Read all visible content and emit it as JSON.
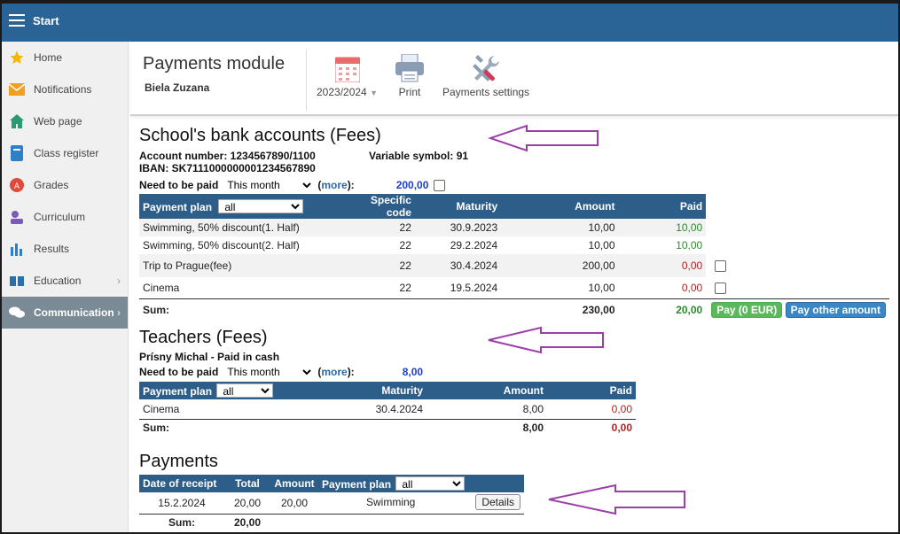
{
  "topbar": {
    "title": "Start"
  },
  "sidebar": {
    "items": [
      {
        "label": "Home",
        "icon": "star-icon"
      },
      {
        "label": "Notifications",
        "icon": "envelope-icon"
      },
      {
        "label": "Web page",
        "icon": "house-icon"
      },
      {
        "label": "Class register",
        "icon": "book-icon"
      },
      {
        "label": "Grades",
        "icon": "grades-icon"
      },
      {
        "label": "Curriculum",
        "icon": "curriculum-icon"
      },
      {
        "label": "Results",
        "icon": "bar-chart-icon"
      },
      {
        "label": "Education",
        "icon": "open-book-icon"
      },
      {
        "label": "Communication",
        "icon": "chat-icon"
      }
    ]
  },
  "toolbar": {
    "title": "Payments module",
    "user": "Biela Zuzana",
    "year": "2023/2024",
    "print": "Print",
    "settings": "Payments settings"
  },
  "bank": {
    "title": "School's bank accounts (Fees)",
    "account_label": "Account number: 1234567890/1100",
    "variable_symbol": "Variable symbol: 91",
    "iban": "IBAN: SK7111000000001234567890",
    "need_label": "Need to be paid",
    "need_select": "This month",
    "more": "more",
    "need_value": "200,00",
    "headers": {
      "plan": "Payment plan",
      "plan_select": "all",
      "code": "Specific code",
      "maturity": "Maturity",
      "amount": "Amount",
      "paid": "Paid"
    },
    "rows": [
      {
        "plan": "Swimming, 50% discount(1. Half)",
        "code": "22",
        "maturity": "30.9.2023",
        "amount": "10,00",
        "paid": "10,00"
      },
      {
        "plan": "Swimming, 50% discount(2. Half)",
        "code": "22",
        "maturity": "29.2.2024",
        "amount": "10,00",
        "paid": "10,00"
      },
      {
        "plan": "Trip to Prague(fee)",
        "code": "22",
        "maturity": "30.4.2024",
        "amount": "200,00",
        "paid": "0,00"
      },
      {
        "plan": "Cinema",
        "code": "22",
        "maturity": "19.5.2024",
        "amount": "10,00",
        "paid": "0,00"
      }
    ],
    "sum_label": "Sum:",
    "sum_amount": "230,00",
    "sum_paid": "20,00",
    "pay_button": "Pay (0 EUR)",
    "pay_other": "Pay other amount"
  },
  "teachers": {
    "title": "Teachers (Fees)",
    "teacher": "Prísny Michal - Paid in cash",
    "need_label": "Need to be paid",
    "need_select": "This month",
    "more": "more",
    "need_value": "8,00",
    "headers": {
      "plan": "Payment plan",
      "plan_select": "all",
      "maturity": "Maturity",
      "amount": "Amount",
      "paid": "Paid"
    },
    "rows": [
      {
        "plan": "Cinema",
        "maturity": "30.4.2024",
        "amount": "8,00",
        "paid": "0,00"
      }
    ],
    "sum_label": "Sum:",
    "sum_amount": "8,00",
    "sum_paid": "0,00"
  },
  "payments": {
    "title": "Payments",
    "headers": {
      "date": "Date of receipt",
      "total": "Total",
      "amount": "Amount",
      "plan": "Payment plan",
      "plan_select": "all"
    },
    "rows": [
      {
        "date": "15.2.2024",
        "total": "20,00",
        "amount": "20,00",
        "plan": "Swimming",
        "details": "Details"
      }
    ],
    "sum_label": "Sum:",
    "sum_total": "20,00"
  },
  "colors": {
    "header": "#2a6496",
    "table_header": "#2d5e8a",
    "arrow": "#9b3fa8",
    "paid_green": "#2b8a2b",
    "unpaid_red": "#b22222"
  }
}
